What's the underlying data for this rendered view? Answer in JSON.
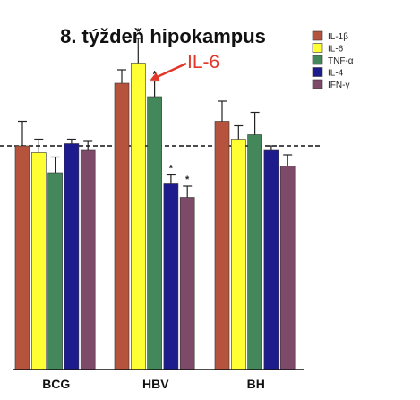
{
  "chart_data": {
    "type": "bar",
    "title": "8. týždeň hipokampus",
    "categories": [
      "BCG",
      "HBV",
      "BH"
    ],
    "series": [
      {
        "name": "IL-1β",
        "color": "#b5533c",
        "values": [
          1.0,
          1.28,
          1.11
        ],
        "errors": [
          0.11,
          0.06,
          0.09
        ],
        "sig": [
          false,
          false,
          false
        ]
      },
      {
        "name": "IL-6",
        "color": "#ffff33",
        "values": [
          0.97,
          1.37,
          1.03
        ],
        "errors": [
          0.06,
          0.11,
          0.06
        ],
        "sig": [
          false,
          true,
          false
        ]
      },
      {
        "name": "TNF-α",
        "color": "#44875a",
        "values": [
          0.88,
          1.22,
          1.05
        ],
        "errors": [
          0.07,
          0.07,
          0.1
        ],
        "sig": [
          false,
          true,
          false
        ]
      },
      {
        "name": "IL-4",
        "color": "#1e1c8c",
        "values": [
          1.01,
          0.83,
          0.98
        ],
        "errors": [
          0.02,
          0.04,
          0.02
        ],
        "sig": [
          false,
          true,
          false
        ]
      },
      {
        "name": "IFN-γ",
        "color": "#7d4a6a",
        "values": [
          0.98,
          0.77,
          0.91
        ],
        "errors": [
          0.04,
          0.05,
          0.05
        ],
        "sig": [
          false,
          true,
          false
        ]
      }
    ],
    "reference_line": 1.0,
    "ylim": [
      0,
      1.5
    ],
    "legend_position": "top-right",
    "annotation": {
      "text": "IL-6",
      "color": "#e2382a"
    }
  }
}
